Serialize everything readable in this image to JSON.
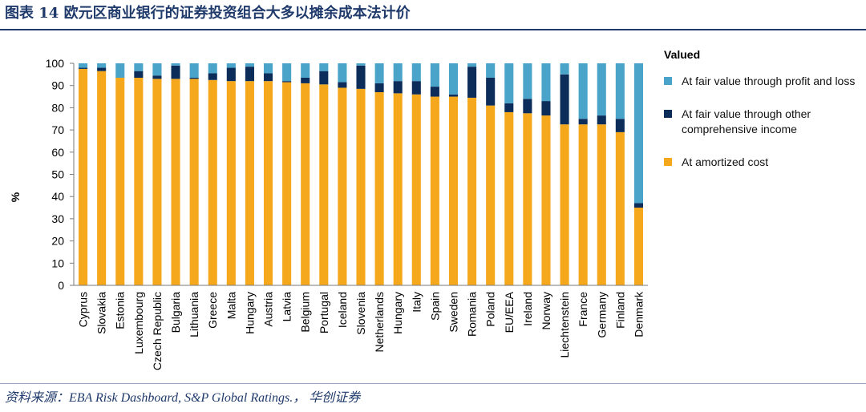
{
  "header": {
    "title": "图表 14 欧元区商业银行的证券投资组合大多以摊余成本法计价"
  },
  "footer": {
    "source": "资料来源：EBA Risk Dashboard, S&P Global Ratings.， 华创证券"
  },
  "colors": {
    "amortized": "#f5a81c",
    "oci": "#0c2d5a",
    "pl": "#4aa3c9",
    "title": "#1f3a6b"
  },
  "chart_data": {
    "type": "bar",
    "stacked": true,
    "ylabel": "%",
    "ylim": [
      0,
      100
    ],
    "yticks": [
      0,
      10,
      20,
      30,
      40,
      50,
      60,
      70,
      80,
      90,
      100
    ],
    "legend_title": "Valued",
    "legend_position": "right",
    "categories": [
      "Cyprus",
      "Slovakia",
      "Estonia",
      "Luxembourg",
      "Czech Republic",
      "Bulgaria",
      "Lithuania",
      "Greece",
      "Malta",
      "Hungary",
      "Austria",
      "Latvia",
      "Belgium",
      "Portugal",
      "Iceland",
      "Slovenia",
      "Netherlands",
      "Hungary",
      "Italy",
      "Spain",
      "Sweden",
      "Romania",
      "Poland",
      "EU/EEA",
      "Ireland",
      "Norway",
      "Liechtenstein",
      "France",
      "Germany",
      "Finland",
      "Denmark"
    ],
    "series": [
      {
        "name": "At amortized cost",
        "color": "#f5a81c",
        "values": [
          97.5,
          96.5,
          93.5,
          93.5,
          93,
          93,
          93,
          92.5,
          92,
          92,
          92,
          91.5,
          91,
          90.5,
          89,
          88.5,
          87,
          86.5,
          86,
          85,
          85,
          84.5,
          81,
          78,
          77.5,
          76.5,
          72.5,
          72.5,
          72.5,
          69,
          35
        ]
      },
      {
        "name": "At fair value through other comprehensive income",
        "color": "#0c2d5a",
        "values": [
          0.5,
          1.5,
          0,
          3,
          1.5,
          6,
          0.5,
          3,
          6,
          6.5,
          3.5,
          0.5,
          2.5,
          6,
          2.5,
          10.5,
          4,
          5.5,
          6,
          4.5,
          1,
          14,
          12.5,
          4,
          6.5,
          6.5,
          22.5,
          2.5,
          4,
          6,
          2
        ]
      },
      {
        "name": "At fair value through profit and loss",
        "color": "#4aa3c9",
        "values": [
          2,
          2,
          6.5,
          3.5,
          5.5,
          1,
          6.5,
          4.5,
          2,
          1.5,
          4.5,
          8,
          6.5,
          3.5,
          8.5,
          1,
          9,
          8,
          8,
          10.5,
          14,
          1.5,
          6.5,
          18,
          16,
          17,
          5,
          25,
          23.5,
          25,
          63
        ]
      }
    ]
  }
}
